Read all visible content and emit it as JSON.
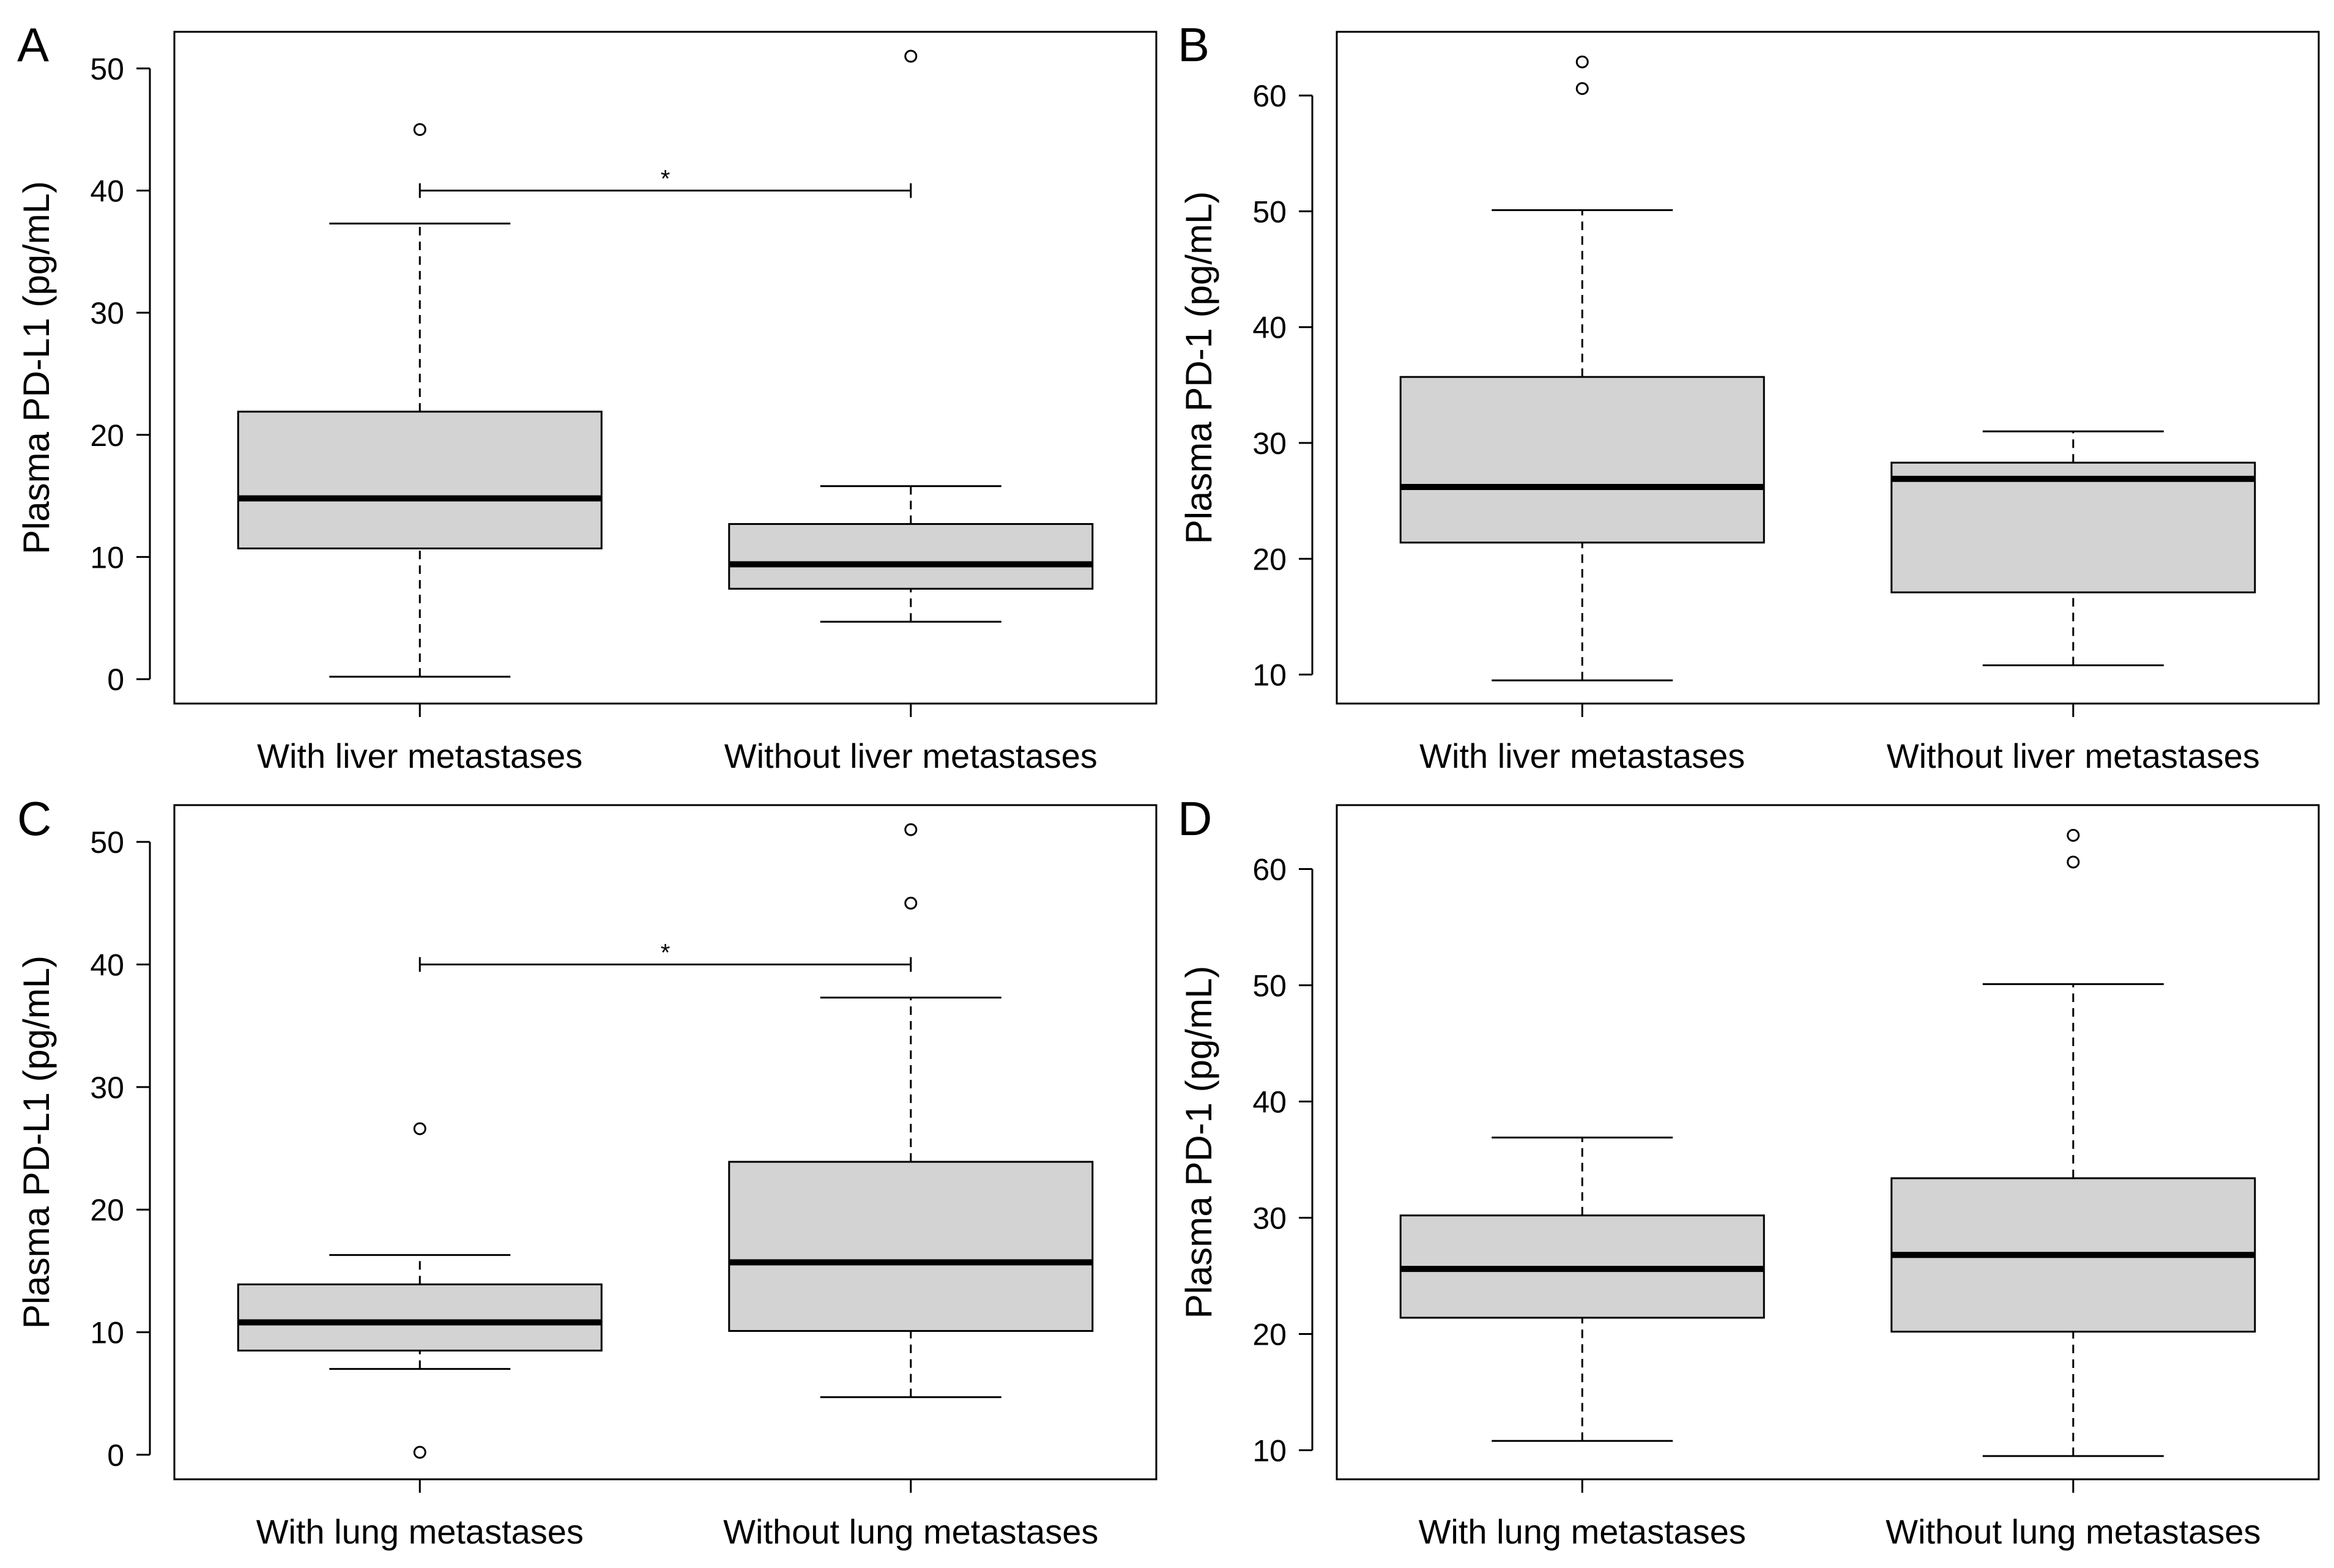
{
  "chart_data": [
    {
      "panel": "A",
      "type": "boxplot",
      "ylabel": "Plasma PD-L1 (pg/mL)",
      "ylim": [
        -2,
        53
      ],
      "yticks": [
        0,
        10,
        20,
        30,
        40,
        50
      ],
      "categories": [
        "With liver metastases",
        "Without liver metastases"
      ],
      "boxes": [
        {
          "min": 0.2,
          "q1": 10.7,
          "median": 14.8,
          "q3": 21.9,
          "max": 37.3,
          "outliers": [
            45
          ]
        },
        {
          "min": 4.7,
          "q1": 7.4,
          "median": 9.4,
          "q3": 12.7,
          "max": 15.8,
          "outliers": [
            51
          ]
        }
      ],
      "significance": {
        "label": "*",
        "y": 40
      }
    },
    {
      "panel": "B",
      "type": "boxplot",
      "ylabel": "Plasma PD-1 (pg/mL)",
      "ylim": [
        7.5,
        65.5
      ],
      "yticks": [
        10,
        20,
        30,
        40,
        50,
        60
      ],
      "categories": [
        "With liver metastases",
        "Without liver metastases"
      ],
      "boxes": [
        {
          "min": 9.5,
          "q1": 21.4,
          "median": 26.2,
          "q3": 35.7,
          "max": 50.1,
          "outliers": [
            62.9,
            60.6
          ]
        },
        {
          "min": 10.8,
          "q1": 17.1,
          "median": 26.9,
          "q3": 28.3,
          "max": 31.0,
          "outliers": []
        }
      ]
    },
    {
      "panel": "C",
      "type": "boxplot",
      "ylabel": "Plasma PD-L1 (pg/mL)",
      "ylim": [
        -2,
        53
      ],
      "yticks": [
        0,
        10,
        20,
        30,
        40,
        50
      ],
      "categories": [
        "With lung metastases",
        "Without lung metastases"
      ],
      "boxes": [
        {
          "min": 7.0,
          "q1": 8.5,
          "median": 10.8,
          "q3": 13.9,
          "max": 16.3,
          "outliers": [
            26.6,
            0.2
          ]
        },
        {
          "min": 4.7,
          "q1": 10.1,
          "median": 15.7,
          "q3": 23.9,
          "max": 37.3,
          "outliers": [
            51,
            45
          ]
        }
      ],
      "significance": {
        "label": "*",
        "y": 40
      }
    },
    {
      "panel": "D",
      "type": "boxplot",
      "ylabel": "Plasma PD-1 (pg/mL)",
      "ylim": [
        7.5,
        65.5
      ],
      "yticks": [
        10,
        20,
        30,
        40,
        50,
        60
      ],
      "categories": [
        "With lung metastases",
        "Without lung metastases"
      ],
      "boxes": [
        {
          "min": 10.8,
          "q1": 21.4,
          "median": 25.6,
          "q3": 30.2,
          "max": 36.9,
          "outliers": []
        },
        {
          "min": 9.5,
          "q1": 20.2,
          "median": 26.8,
          "q3": 33.4,
          "max": 50.1,
          "outliers": [
            62.9,
            60.6
          ]
        }
      ]
    }
  ],
  "colors": {
    "box_fill": "#d3d3d3",
    "stroke": "#000000",
    "background": "#ffffff"
  }
}
